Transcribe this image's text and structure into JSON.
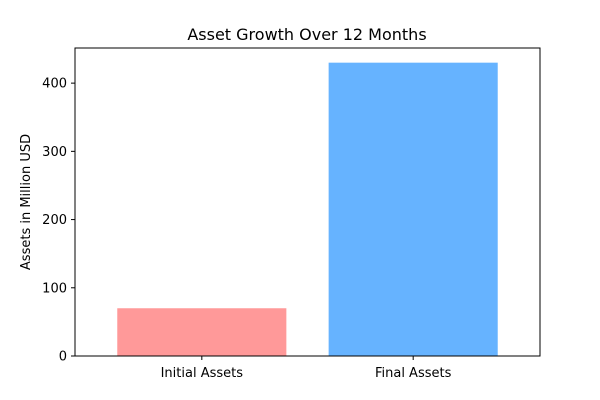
{
  "chart_data": {
    "type": "bar",
    "title": "Asset Growth Over 12 Months",
    "xlabel": "",
    "ylabel": "Assets in Million USD",
    "categories": [
      "Initial Assets",
      "Final Assets"
    ],
    "values": [
      70,
      430
    ],
    "colors": [
      "#ff9999",
      "#66b3ff"
    ],
    "ylim": [
      0,
      451.5
    ],
    "yticks": [
      0,
      100,
      200,
      300,
      400
    ],
    "grid": false,
    "legend": "none"
  }
}
